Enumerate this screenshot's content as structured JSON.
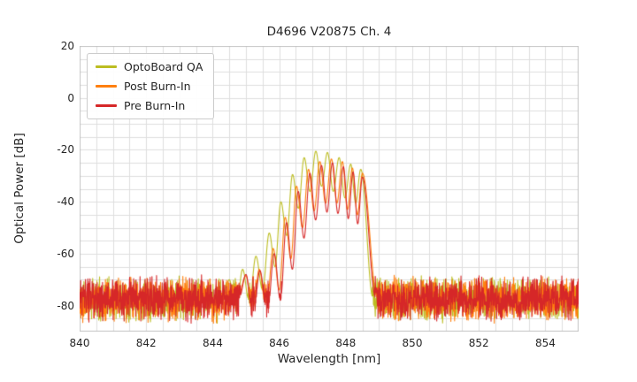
{
  "chart_data": {
    "type": "line",
    "title": "D4696 V20875 Ch. 4",
    "xlabel": "Wavelength [nm]",
    "ylabel": "Optical Power [dB]",
    "xlim": [
      840,
      855
    ],
    "ylim": [
      -90,
      20
    ],
    "xticks": [
      840,
      842,
      844,
      846,
      848,
      850,
      852,
      854
    ],
    "yticks": [
      20,
      0,
      -20,
      -40,
      -60,
      -80
    ],
    "grid": true,
    "grid_x_step": 0.5,
    "grid_y_step": 5,
    "legend_position": "upper left",
    "noise_floor": {
      "mean": -77,
      "min": -87,
      "max": -68
    },
    "description": "Optical spectrum with laser mode comb between ~845 and ~849 nm over a noise floor near -77 dB",
    "series": [
      {
        "name": "OptoBoard QA",
        "color": "#bcbd22",
        "seed": 11,
        "range": [
          844.3,
          848.82
        ],
        "valley_drop": 13,
        "peaks": [
          [
            844.5,
            -70
          ],
          [
            844.9,
            -66
          ],
          [
            845.3,
            -61
          ],
          [
            845.7,
            -52
          ],
          [
            846.05,
            -40
          ],
          [
            846.4,
            -29.5
          ],
          [
            846.75,
            -23
          ],
          [
            847.1,
            -20.5
          ],
          [
            847.45,
            -21
          ],
          [
            847.8,
            -23
          ],
          [
            848.15,
            -25.5
          ],
          [
            848.45,
            -27.5
          ]
        ]
      },
      {
        "name": "Post Burn-In",
        "color": "#ff7f0e",
        "seed": 22,
        "range": [
          844.75,
          848.95
        ],
        "valley_drop": 16,
        "peaks": [
          [
            845.0,
            -68.5
          ],
          [
            845.4,
            -66
          ],
          [
            845.82,
            -58
          ],
          [
            846.18,
            -46
          ],
          [
            846.52,
            -34
          ],
          [
            846.88,
            -27.5
          ],
          [
            847.22,
            -24.5
          ],
          [
            847.57,
            -23.5
          ],
          [
            847.9,
            -24.5
          ],
          [
            848.2,
            -27
          ],
          [
            848.5,
            -29
          ]
        ]
      },
      {
        "name": "Pre Burn-In",
        "color": "#d62728",
        "seed": 33,
        "range": [
          844.8,
          848.9
        ],
        "valley_drop": 18,
        "peaks": [
          [
            845.0,
            -68
          ],
          [
            845.42,
            -66.5
          ],
          [
            845.85,
            -60
          ],
          [
            846.22,
            -48
          ],
          [
            846.57,
            -36
          ],
          [
            846.92,
            -29
          ],
          [
            847.27,
            -26
          ],
          [
            847.6,
            -25
          ],
          [
            847.93,
            -26.5
          ],
          [
            848.22,
            -28.5
          ],
          [
            848.5,
            -30.5
          ]
        ]
      }
    ]
  }
}
